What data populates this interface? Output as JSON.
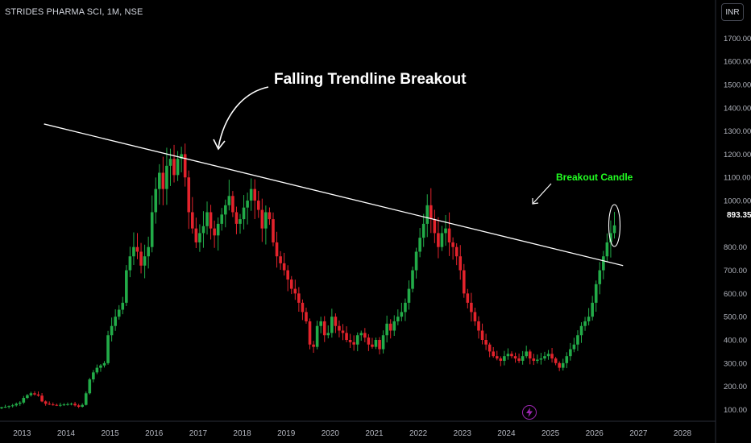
{
  "header": {
    "symbol_title": "STRIDES PHARMA SCI, 1M, NSE",
    "currency_label": "INR"
  },
  "price_scale": {
    "current_price_label": "893.35"
  },
  "annotations": {
    "main_label": "Falling Trendline Breakout",
    "candle_label": "Breakout Candle"
  },
  "chart_data": {
    "type": "candlestick",
    "interval": "1M",
    "y_ticks": [
      100,
      200,
      300,
      400,
      500,
      600,
      700,
      800,
      1000,
      1100,
      1200,
      1300,
      1400,
      1500,
      1600,
      1700
    ],
    "y_tick_labels": [
      "100.00",
      "200.00",
      "300.00",
      "400.00",
      "500.00",
      "600.00",
      "700.00",
      "800.00",
      "1000.00",
      "1100.00",
      "1200.00",
      "1300.00",
      "1400.00",
      "1500.00",
      "1600.00",
      "1700.00"
    ],
    "x_ticks": [
      "2013",
      "2014",
      "2015",
      "2016",
      "2017",
      "2018",
      "2019",
      "2020",
      "2021",
      "2022",
      "2023",
      "2024",
      "2025",
      "2026",
      "2027",
      "2028"
    ],
    "ylim": [
      60,
      1760
    ],
    "x_start": 2012.5,
    "x_end": 2028.75,
    "last_price": 893.35,
    "up_color": "#22ab48",
    "down_color": "#e3232c",
    "trendline": {
      "from": {
        "date": 2013.5,
        "price": 1330
      },
      "to": {
        "date": 2026.65,
        "price": 720
      }
    },
    "monthly_close": [
      110,
      112,
      115,
      118,
      125,
      130,
      150,
      162,
      170,
      165,
      160,
      135,
      125,
      122,
      120,
      118,
      120,
      122,
      123,
      125,
      118,
      112,
      120,
      170,
      230,
      260,
      280,
      290,
      300,
      420,
      460,
      500,
      530,
      560,
      700,
      760,
      800,
      780,
      720,
      760,
      800,
      950,
      1050,
      1120,
      1050,
      1150,
      1180,
      1110,
      1180,
      1200,
      1100,
      950,
      880,
      820,
      860,
      890,
      950,
      880,
      850,
      900,
      940,
      980,
      1020,
      950,
      900,
      920,
      970,
      1000,
      1050,
      1000,
      960,
      880,
      950,
      920,
      820,
      760,
      730,
      700,
      660,
      620,
      600,
      560,
      520,
      480,
      380,
      370,
      460,
      480,
      420,
      430,
      500,
      460,
      440,
      430,
      400,
      390,
      380,
      420,
      430,
      410,
      380,
      370,
      400,
      360,
      420,
      470,
      440,
      480,
      500,
      520,
      560,
      620,
      700,
      780,
      840,
      900,
      980,
      920,
      860,
      800,
      860,
      880,
      820,
      800,
      760,
      700,
      600,
      560,
      520,
      480,
      440,
      400,
      380,
      350,
      330,
      320,
      310,
      330,
      340,
      330,
      320,
      310,
      330,
      350,
      320,
      310,
      315,
      320,
      330,
      340,
      320,
      300,
      280,
      300,
      330,
      360,
      380,
      420,
      460,
      480,
      500,
      560,
      640,
      700,
      760,
      820,
      860,
      893.35
    ]
  }
}
